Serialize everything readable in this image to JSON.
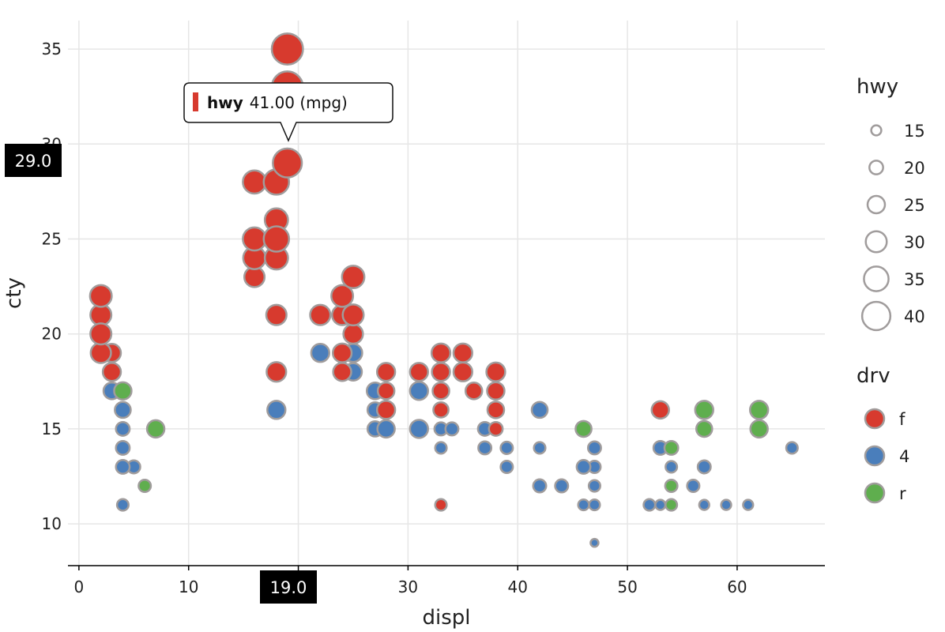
{
  "chart_data": {
    "type": "scatter",
    "xlabel": "displ",
    "ylabel": "cty",
    "xlim": [
      -1,
      68
    ],
    "ylim": [
      7.8,
      36.5
    ],
    "xticks": [
      0,
      10,
      20,
      30,
      40,
      50,
      60
    ],
    "xtick_labels": [
      "0",
      "10",
      "20",
      "30",
      "40",
      "50",
      "60"
    ],
    "yticks": [
      10,
      15,
      20,
      25,
      30,
      35
    ],
    "ytick_labels": [
      "10",
      "15",
      "20",
      "25",
      "30",
      "35"
    ],
    "grid": true,
    "legend_position": "right",
    "colors": {
      "f": "#d73a2e",
      "4": "#4a7ebb",
      "r": "#5fae4e",
      "stroke": "#a09c9c",
      "badge_bg": "#000000"
    },
    "size_legend": {
      "title": "hwy",
      "values": [
        15,
        20,
        25,
        30,
        35,
        40
      ]
    },
    "color_legend": {
      "title": "drv",
      "values": [
        "f",
        "4",
        "r"
      ]
    },
    "points": [
      {
        "x": 2,
        "y": 22,
        "hwy": 31,
        "drv": "f"
      },
      {
        "x": 2,
        "y": 21,
        "hwy": 30,
        "drv": "f"
      },
      {
        "x": 2,
        "y": 20,
        "hwy": 30,
        "drv": "f"
      },
      {
        "x": 2,
        "y": 19,
        "hwy": 29,
        "drv": "f"
      },
      {
        "x": 3,
        "y": 19,
        "hwy": 26,
        "drv": "f"
      },
      {
        "x": 3,
        "y": 18,
        "hwy": 26,
        "drv": "f"
      },
      {
        "x": 3,
        "y": 17,
        "hwy": 24,
        "drv": "4"
      },
      {
        "x": 4,
        "y": 17,
        "hwy": 25,
        "drv": "r"
      },
      {
        "x": 4,
        "y": 16,
        "hwy": 23,
        "drv": "4"
      },
      {
        "x": 4,
        "y": 15,
        "hwy": 20,
        "drv": "4"
      },
      {
        "x": 4,
        "y": 14,
        "hwy": 20,
        "drv": "4"
      },
      {
        "x": 4,
        "y": 13,
        "hwy": 20,
        "drv": "4"
      },
      {
        "x": 4,
        "y": 11,
        "hwy": 17,
        "drv": "4"
      },
      {
        "x": 5,
        "y": 13,
        "hwy": 19,
        "drv": "4"
      },
      {
        "x": 6,
        "y": 12,
        "hwy": 18,
        "drv": "r"
      },
      {
        "x": 7,
        "y": 15,
        "hwy": 25,
        "drv": "r"
      },
      {
        "x": 16,
        "y": 28,
        "hwy": 33,
        "drv": "f"
      },
      {
        "x": 16,
        "y": 25,
        "hwy": 33,
        "drv": "f"
      },
      {
        "x": 16,
        "y": 24,
        "hwy": 32,
        "drv": "f"
      },
      {
        "x": 16,
        "y": 23,
        "hwy": 29,
        "drv": "f"
      },
      {
        "x": 18,
        "y": 28,
        "hwy": 36,
        "drv": "f"
      },
      {
        "x": 18,
        "y": 26,
        "hwy": 33,
        "drv": "f"
      },
      {
        "x": 18,
        "y": 25,
        "hwy": 36,
        "drv": "f"
      },
      {
        "x": 18,
        "y": 24,
        "hwy": 33,
        "drv": "f"
      },
      {
        "x": 18,
        "y": 21,
        "hwy": 29,
        "drv": "f"
      },
      {
        "x": 18,
        "y": 18,
        "hwy": 28,
        "drv": "f"
      },
      {
        "x": 18,
        "y": 16,
        "hwy": 26,
        "drv": "4"
      },
      {
        "x": 19,
        "y": 35,
        "hwy": 44,
        "drv": "f"
      },
      {
        "x": 19,
        "y": 33,
        "hwy": 44,
        "drv": "f"
      },
      {
        "x": 19,
        "y": 29,
        "hwy": 41,
        "drv": "f"
      },
      {
        "x": 22,
        "y": 21,
        "hwy": 29,
        "drv": "f"
      },
      {
        "x": 22,
        "y": 19,
        "hwy": 26,
        "drv": "4"
      },
      {
        "x": 24,
        "y": 22,
        "hwy": 31,
        "drv": "f"
      },
      {
        "x": 24,
        "y": 21,
        "hwy": 29,
        "drv": "f"
      },
      {
        "x": 24,
        "y": 19,
        "hwy": 27,
        "drv": "f"
      },
      {
        "x": 24,
        "y": 18,
        "hwy": 26,
        "drv": "f"
      },
      {
        "x": 25,
        "y": 23,
        "hwy": 32,
        "drv": "f"
      },
      {
        "x": 25,
        "y": 21,
        "hwy": 30,
        "drv": "f"
      },
      {
        "x": 25,
        "y": 20,
        "hwy": 28,
        "drv": "f"
      },
      {
        "x": 25,
        "y": 19,
        "hwy": 26,
        "drv": "4"
      },
      {
        "x": 25,
        "y": 18,
        "hwy": 25,
        "drv": "4"
      },
      {
        "x": 27,
        "y": 17,
        "hwy": 24,
        "drv": "4"
      },
      {
        "x": 27,
        "y": 16,
        "hwy": 22,
        "drv": "4"
      },
      {
        "x": 27,
        "y": 15,
        "hwy": 22,
        "drv": "4"
      },
      {
        "x": 28,
        "y": 18,
        "hwy": 26,
        "drv": "f"
      },
      {
        "x": 28,
        "y": 17,
        "hwy": 24,
        "drv": "f"
      },
      {
        "x": 28,
        "y": 16,
        "hwy": 26,
        "drv": "f"
      },
      {
        "x": 28,
        "y": 15,
        "hwy": 25,
        "drv": "4"
      },
      {
        "x": 31,
        "y": 18,
        "hwy": 26,
        "drv": "f"
      },
      {
        "x": 31,
        "y": 17,
        "hwy": 26,
        "drv": "4"
      },
      {
        "x": 31,
        "y": 15,
        "hwy": 26,
        "drv": "4"
      },
      {
        "x": 33,
        "y": 19,
        "hwy": 27,
        "drv": "f"
      },
      {
        "x": 33,
        "y": 18,
        "hwy": 26,
        "drv": "f"
      },
      {
        "x": 33,
        "y": 17,
        "hwy": 24,
        "drv": "f"
      },
      {
        "x": 33,
        "y": 16,
        "hwy": 22,
        "drv": "f"
      },
      {
        "x": 33,
        "y": 15,
        "hwy": 19,
        "drv": "4"
      },
      {
        "x": 33,
        "y": 14,
        "hwy": 17,
        "drv": "4"
      },
      {
        "x": 33,
        "y": 11,
        "hwy": 17,
        "drv": "f"
      },
      {
        "x": 34,
        "y": 15,
        "hwy": 19,
        "drv": "4"
      },
      {
        "x": 35,
        "y": 19,
        "hwy": 27,
        "drv": "f"
      },
      {
        "x": 35,
        "y": 18,
        "hwy": 27,
        "drv": "f"
      },
      {
        "x": 36,
        "y": 17,
        "hwy": 24,
        "drv": "f"
      },
      {
        "x": 37,
        "y": 15,
        "hwy": 20,
        "drv": "4"
      },
      {
        "x": 37,
        "y": 14,
        "hwy": 19,
        "drv": "4"
      },
      {
        "x": 38,
        "y": 18,
        "hwy": 27,
        "drv": "f"
      },
      {
        "x": 38,
        "y": 17,
        "hwy": 25,
        "drv": "f"
      },
      {
        "x": 38,
        "y": 16,
        "hwy": 24,
        "drv": "f"
      },
      {
        "x": 38,
        "y": 15,
        "hwy": 20,
        "drv": "f"
      },
      {
        "x": 39,
        "y": 14,
        "hwy": 18,
        "drv": "4"
      },
      {
        "x": 39,
        "y": 13,
        "hwy": 18,
        "drv": "4"
      },
      {
        "x": 42,
        "y": 16,
        "hwy": 23,
        "drv": "4"
      },
      {
        "x": 42,
        "y": 14,
        "hwy": 17,
        "drv": "4"
      },
      {
        "x": 42,
        "y": 12,
        "hwy": 19,
        "drv": "4"
      },
      {
        "x": 44,
        "y": 12,
        "hwy": 19,
        "drv": "4"
      },
      {
        "x": 46,
        "y": 15,
        "hwy": 23,
        "drv": "r"
      },
      {
        "x": 46,
        "y": 13,
        "hwy": 20,
        "drv": "4"
      },
      {
        "x": 46,
        "y": 11,
        "hwy": 16,
        "drv": "4"
      },
      {
        "x": 47,
        "y": 14,
        "hwy": 19,
        "drv": "4"
      },
      {
        "x": 47,
        "y": 13,
        "hwy": 18,
        "drv": "4"
      },
      {
        "x": 47,
        "y": 12,
        "hwy": 17,
        "drv": "4"
      },
      {
        "x": 47,
        "y": 11,
        "hwy": 16,
        "drv": "4"
      },
      {
        "x": 47,
        "y": 9,
        "hwy": 12,
        "drv": "4"
      },
      {
        "x": 52,
        "y": 11,
        "hwy": 17,
        "drv": "4"
      },
      {
        "x": 53,
        "y": 16,
        "hwy": 25,
        "drv": "f"
      },
      {
        "x": 53,
        "y": 14,
        "hwy": 20,
        "drv": "4"
      },
      {
        "x": 53,
        "y": 11,
        "hwy": 15,
        "drv": "4"
      },
      {
        "x": 54,
        "y": 14,
        "hwy": 20,
        "drv": "r"
      },
      {
        "x": 54,
        "y": 13,
        "hwy": 17,
        "drv": "4"
      },
      {
        "x": 54,
        "y": 12,
        "hwy": 18,
        "drv": "r"
      },
      {
        "x": 54,
        "y": 11,
        "hwy": 17,
        "drv": "r"
      },
      {
        "x": 56,
        "y": 12,
        "hwy": 18,
        "drv": "4"
      },
      {
        "x": 57,
        "y": 16,
        "hwy": 26,
        "drv": "r"
      },
      {
        "x": 57,
        "y": 15,
        "hwy": 23,
        "drv": "r"
      },
      {
        "x": 57,
        "y": 13,
        "hwy": 19,
        "drv": "4"
      },
      {
        "x": 57,
        "y": 11,
        "hwy": 15,
        "drv": "4"
      },
      {
        "x": 59,
        "y": 11,
        "hwy": 15,
        "drv": "4"
      },
      {
        "x": 61,
        "y": 11,
        "hwy": 15,
        "drv": "4"
      },
      {
        "x": 62,
        "y": 16,
        "hwy": 26,
        "drv": "r"
      },
      {
        "x": 62,
        "y": 15,
        "hwy": 25,
        "drv": "r"
      },
      {
        "x": 65,
        "y": 14,
        "hwy": 17,
        "drv": "4"
      }
    ],
    "highlight": {
      "x_badge": "19.0",
      "y_badge": "29.0",
      "x": 19,
      "y": 29,
      "tooltip": {
        "series": "hwy",
        "value": "41.00 (mpg)"
      }
    }
  }
}
